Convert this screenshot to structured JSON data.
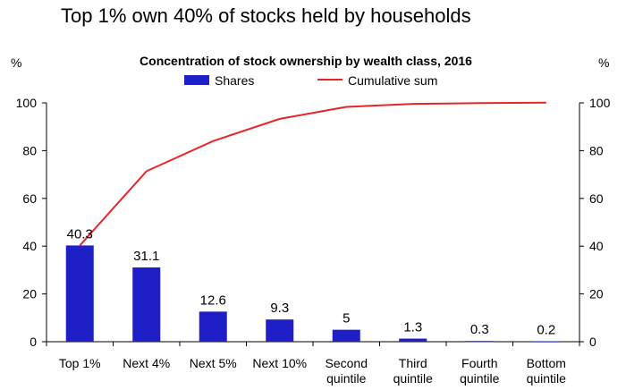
{
  "headline": "Top 1% own 40% of stocks held by households",
  "left_unit": "%",
  "right_unit": "%",
  "chart_data": {
    "type": "bar",
    "title": "Concentration of stock ownership by wealth class, 2016",
    "categories": [
      "Top 1%",
      "Next 4%",
      "Next 5%",
      "Next 10%",
      "Second quintile",
      "Third quintile",
      "Fourth quintile",
      "Bottom quintile"
    ],
    "category_lines": [
      [
        "Top 1%"
      ],
      [
        "Next 4%"
      ],
      [
        "Next 5%"
      ],
      [
        "Next 10%"
      ],
      [
        "Second",
        "quintile"
      ],
      [
        "Third",
        "quintile"
      ],
      [
        "Fourth",
        "quintile"
      ],
      [
        "Bottom",
        "quintile"
      ]
    ],
    "series": [
      {
        "name": "Shares",
        "type": "bar",
        "color": "#1f1fc8",
        "axis": "left",
        "values": [
          40.3,
          31.1,
          12.6,
          9.3,
          5,
          1.3,
          0.3,
          0.2
        ],
        "labels": [
          "40.3",
          "31.1",
          "12.6",
          "9.3",
          "5",
          "1.3",
          "0.3",
          "0.2"
        ]
      },
      {
        "name": "Cumulative sum",
        "type": "line",
        "color": "#e8262a",
        "axis": "left",
        "values": [
          40.3,
          71.4,
          84.0,
          93.3,
          98.3,
          99.6,
          99.9,
          100.1
        ]
      }
    ],
    "ylim": [
      0,
      100
    ],
    "yticks": [
      0,
      20,
      40,
      60,
      80,
      100
    ],
    "right_axis": {
      "ylim": [
        0,
        100
      ],
      "yticks": [
        0,
        20,
        40,
        60,
        80,
        100
      ]
    },
    "legend": "top-center",
    "grid": false
  }
}
